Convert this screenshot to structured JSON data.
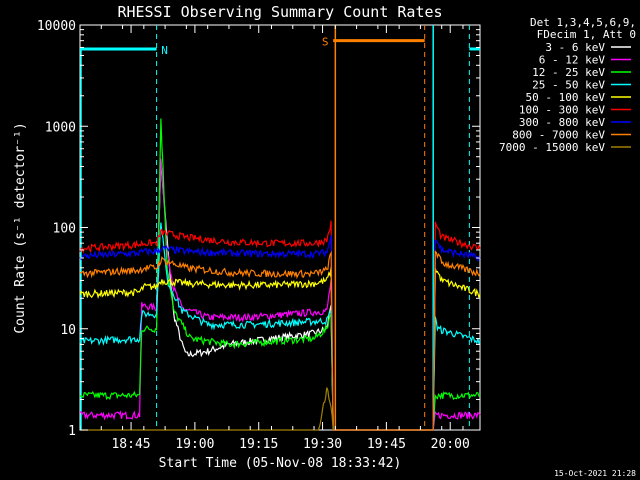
{
  "chart_data": {
    "type": "line",
    "title": "RHESSI Observing Summary Count Rates",
    "xlabel": "Start Time (05-Nov-08 18:33:42)",
    "ylabel": "Count Rate (s⁻¹ detector⁻¹)",
    "yscale": "log",
    "ylim": [
      1,
      10000
    ],
    "x_range_minutes": [
      0,
      94
    ],
    "x_ticks": [
      {
        "t": 12,
        "label": "18:45"
      },
      {
        "t": 27,
        "label": "19:00"
      },
      {
        "t": 42,
        "label": "19:15"
      },
      {
        "t": 57,
        "label": "19:30"
      },
      {
        "t": 72,
        "label": "19:45"
      },
      {
        "t": 87,
        "label": "20:00"
      }
    ],
    "y_ticks": [
      {
        "v": 1,
        "label": "1"
      },
      {
        "v": 10,
        "label": "10"
      },
      {
        "v": 100,
        "label": "100"
      },
      {
        "v": 1000,
        "label": "1000"
      },
      {
        "v": 10000,
        "label": "10000"
      }
    ],
    "legend_header": [
      "Det 1,3,4,5,6,9,",
      "FDecim 1, Att 0"
    ],
    "legend_placement": "right",
    "flags": [
      {
        "label": "N",
        "color": "#00ffff",
        "segments": [
          [
            0,
            18
          ],
          [
            91.5,
            94
          ]
        ],
        "level": 5800,
        "markers": [
          18,
          91.5
        ]
      },
      {
        "label": "S",
        "color": "#ff8000",
        "segments": [
          [
            59.5,
            81
          ]
        ],
        "level": 7000,
        "markers": [
          81
        ]
      }
    ],
    "gap_minutes": [
      60,
      83
    ],
    "series": [
      {
        "name": "3 - 6 keV",
        "color": "#ffffff",
        "points": [
          [
            18,
            18
          ],
          [
            19,
            450
          ],
          [
            21,
            40
          ],
          [
            22,
            14
          ],
          [
            24,
            7
          ],
          [
            25,
            5.5
          ],
          [
            30,
            6
          ],
          [
            35,
            7
          ],
          [
            40,
            7.5
          ],
          [
            45,
            8
          ],
          [
            50,
            8.5
          ],
          [
            55,
            9
          ],
          [
            58,
            10
          ],
          [
            59,
            18
          ],
          [
            59.5,
            1
          ]
        ]
      },
      {
        "name": "6 - 12 keV",
        "color": "#ff00ff",
        "points": [
          [
            0,
            1.4
          ],
          [
            14,
            1.4
          ],
          [
            14.5,
            17
          ],
          [
            18,
            16
          ],
          [
            19,
            500
          ],
          [
            20.5,
            60
          ],
          [
            22,
            25
          ],
          [
            24,
            16
          ],
          [
            30,
            13
          ],
          [
            40,
            13
          ],
          [
            50,
            14
          ],
          [
            58,
            15
          ],
          [
            59,
            30
          ],
          [
            59.5,
            1
          ],
          [
            83,
            1
          ],
          [
            83.5,
            1.4
          ],
          [
            94,
            1.4
          ]
        ]
      },
      {
        "name": "12 - 25 keV",
        "color": "#00ff00",
        "points": [
          [
            0,
            2.2
          ],
          [
            14,
            2.2
          ],
          [
            14.5,
            10
          ],
          [
            18,
            10
          ],
          [
            19,
            1200
          ],
          [
            20.5,
            40
          ],
          [
            22,
            15
          ],
          [
            26,
            8
          ],
          [
            35,
            7
          ],
          [
            45,
            7.5
          ],
          [
            55,
            8
          ],
          [
            58,
            10
          ],
          [
            59,
            15
          ],
          [
            59.5,
            1
          ],
          [
            83,
            1
          ],
          [
            83.5,
            2.2
          ],
          [
            94,
            2.2
          ]
        ]
      },
      {
        "name": "25 - 50 keV",
        "color": "#00ffff",
        "points": [
          [
            0,
            7.5
          ],
          [
            14,
            8
          ],
          [
            14.5,
            14
          ],
          [
            18,
            14
          ],
          [
            19,
            120
          ],
          [
            20.5,
            30
          ],
          [
            24,
            15
          ],
          [
            30,
            11
          ],
          [
            40,
            11
          ],
          [
            50,
            11.5
          ],
          [
            58,
            12
          ],
          [
            59,
            15
          ],
          [
            59.5,
            1
          ],
          [
            83,
            1
          ],
          [
            83.5,
            14
          ],
          [
            84,
            10
          ],
          [
            94,
            7.5
          ]
        ]
      },
      {
        "name": "50 - 100 keV",
        "color": "#ffff00",
        "points": [
          [
            0,
            22
          ],
          [
            14,
            23
          ],
          [
            15,
            26
          ],
          [
            18,
            26
          ],
          [
            19,
            30
          ],
          [
            25,
            28
          ],
          [
            35,
            27
          ],
          [
            45,
            27
          ],
          [
            55,
            28
          ],
          [
            58,
            30
          ],
          [
            59,
            38
          ],
          [
            59.5,
            1
          ],
          [
            83,
            1
          ],
          [
            83.5,
            40
          ],
          [
            85,
            30
          ],
          [
            94,
            22
          ]
        ]
      },
      {
        "name": "100 - 300 keV",
        "color": "#ff0000",
        "points": [
          [
            0,
            62
          ],
          [
            14,
            68
          ],
          [
            15,
            70
          ],
          [
            18,
            70
          ],
          [
            19,
            90
          ],
          [
            25,
            80
          ],
          [
            35,
            72
          ],
          [
            45,
            70
          ],
          [
            55,
            70
          ],
          [
            58,
            75
          ],
          [
            59,
            110
          ],
          [
            59.5,
            1
          ],
          [
            83,
            1
          ],
          [
            83.5,
            110
          ],
          [
            85,
            80
          ],
          [
            94,
            62
          ]
        ]
      },
      {
        "name": "300 - 800 keV",
        "color": "#0000ff",
        "points": [
          [
            0,
            52
          ],
          [
            14,
            56
          ],
          [
            15,
            58
          ],
          [
            18,
            58
          ],
          [
            19,
            62
          ],
          [
            25,
            58
          ],
          [
            35,
            56
          ],
          [
            45,
            55
          ],
          [
            55,
            55
          ],
          [
            58,
            57
          ],
          [
            59,
            80
          ],
          [
            59.5,
            1
          ],
          [
            83,
            1
          ],
          [
            83.5,
            80
          ],
          [
            85,
            60
          ],
          [
            94,
            50
          ]
        ]
      },
      {
        "name": "800 - 7000 keV",
        "color": "#ff8000",
        "points": [
          [
            0,
            35
          ],
          [
            14,
            38
          ],
          [
            15,
            40
          ],
          [
            18,
            40
          ],
          [
            19,
            48
          ],
          [
            25,
            40
          ],
          [
            35,
            36
          ],
          [
            45,
            35
          ],
          [
            55,
            35
          ],
          [
            58,
            38
          ],
          [
            59,
            55
          ],
          [
            59.5,
            1
          ],
          [
            83,
            1
          ],
          [
            83.5,
            60
          ],
          [
            85,
            45
          ],
          [
            94,
            35
          ]
        ]
      },
      {
        "name": "7000 - 15000 keV",
        "color": "#a08000",
        "points": [
          [
            0,
            1
          ],
          [
            56,
            1
          ],
          [
            57,
            1.6
          ],
          [
            58,
            2.5
          ],
          [
            59,
            1.8
          ],
          [
            59.5,
            1
          ]
        ]
      }
    ]
  },
  "timestamp": "15-Oct-2021 21:28"
}
